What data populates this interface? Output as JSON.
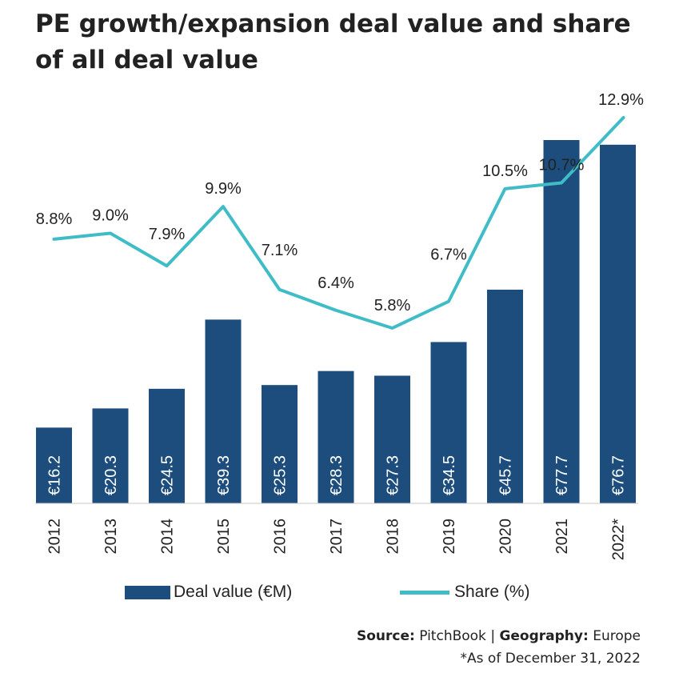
{
  "title": "PE growth/expansion deal value and share of all deal value",
  "colors": {
    "bar": "#1c4d7d",
    "line": "#3fbcc6",
    "text": "#222222"
  },
  "legend": {
    "bar_label": "Deal value (€M)",
    "line_label": "Share (%)"
  },
  "source": {
    "source_label": "Source:",
    "source_value": "PitchBook",
    "separator": "|",
    "geography_label": "Geography:",
    "geography_value": "Europe"
  },
  "footnote": "*As of December 31, 2022",
  "chart_data": {
    "type": "bar",
    "categories": [
      "2012",
      "2013",
      "2014",
      "2015",
      "2016",
      "2017",
      "2018",
      "2019",
      "2020",
      "2021",
      "2022*"
    ],
    "series": [
      {
        "name": "Deal value (€M)",
        "type": "bar",
        "values": [
          16.2,
          20.3,
          24.5,
          39.3,
          25.3,
          28.3,
          27.3,
          34.5,
          45.7,
          77.7,
          76.7
        ],
        "labels": [
          "€16.2",
          "€20.3",
          "€24.5",
          "€39.3",
          "€25.3",
          "€28.3",
          "€27.3",
          "€34.5",
          "€45.7",
          "€77.7",
          "€76.7"
        ]
      },
      {
        "name": "Share (%)",
        "type": "line",
        "values": [
          8.8,
          9.0,
          7.9,
          9.9,
          7.1,
          6.4,
          5.8,
          6.7,
          10.5,
          10.7,
          12.9
        ],
        "labels": [
          "8.8%",
          "9.0%",
          "7.9%",
          "9.9%",
          "7.1%",
          "6.4%",
          "5.8%",
          "6.7%",
          "10.5%",
          "10.7%",
          "12.9%"
        ]
      }
    ],
    "bar_ylim": [
      0,
      82
    ],
    "line_ylim": [
      -10.3,
      15.5
    ],
    "grid": false,
    "legend_position": "bottom"
  }
}
